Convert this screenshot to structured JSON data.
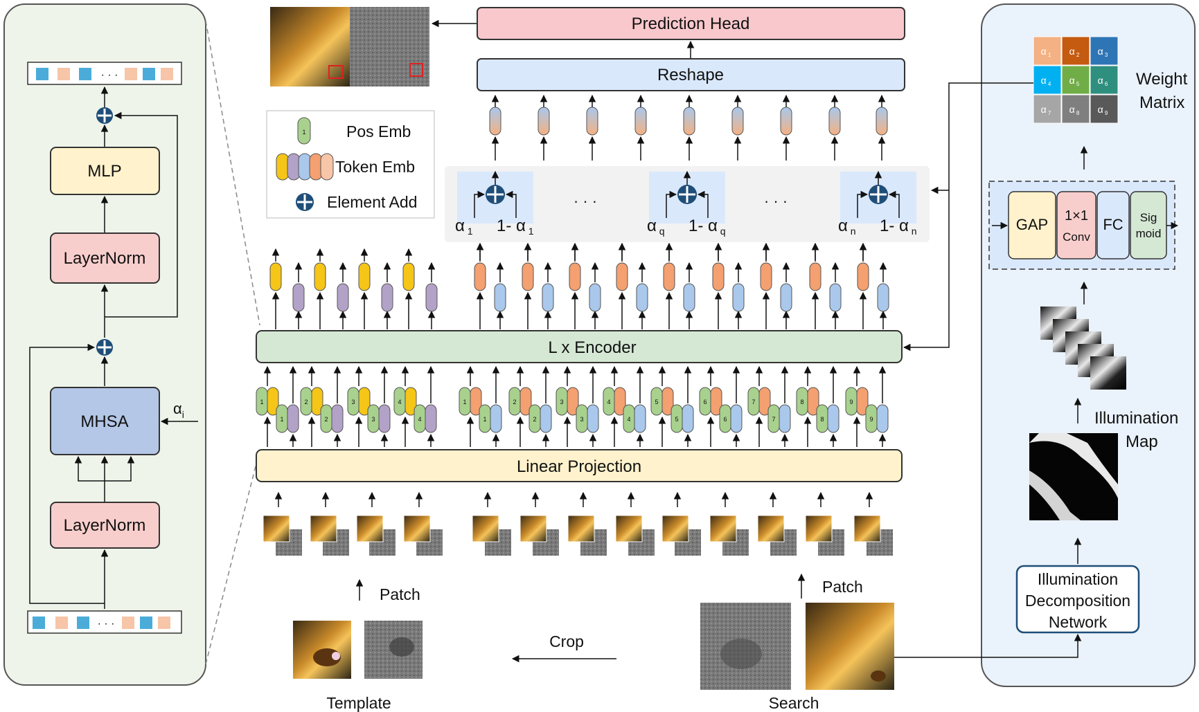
{
  "left_panel": {
    "mlp": "MLP",
    "layernorm_top": "LayerNorm",
    "mhsa": "MHSA",
    "layernorm_bottom": "LayerNorm",
    "alpha_input": "α",
    "alpha_sub": "i",
    "token_ellipsis": "· · ·"
  },
  "center": {
    "prediction_head": "Prediction Head",
    "reshape": "Reshape",
    "encoder": "L x Encoder",
    "linear_projection": "Linear Projection",
    "gate_dots": "·  ·  ·",
    "gate_labels": [
      {
        "alpha": "α",
        "sub": "1",
        "one_minus": "1- α",
        "sub2": "1"
      },
      {
        "alpha": "α",
        "sub": "q",
        "one_minus": "1- α",
        "sub2": "q"
      },
      {
        "alpha": "α",
        "sub": "n",
        "one_minus": "1- α",
        "sub2": "n"
      }
    ],
    "template_pos_ids": [
      "1",
      "2",
      "3",
      "4"
    ],
    "search_pos_ids": [
      "1",
      "2",
      "3",
      "4",
      "5",
      "6",
      "7",
      "8",
      "9"
    ],
    "patch_label_left": "Patch",
    "patch_label_right": "Patch",
    "crop_label": "Crop",
    "template_label": "Template",
    "search_label": "Search"
  },
  "legend": {
    "pos_emb": "Pos Emb",
    "pos_emb_id": "1",
    "token_emb": "Token Emb",
    "element_add": "Element Add"
  },
  "right_panel": {
    "weight_matrix_label_1": "Weight",
    "weight_matrix_label_2": "Matrix",
    "matrix_cells": [
      {
        "a": "α",
        "s": "1",
        "color": "#f4b183"
      },
      {
        "a": "α",
        "s": "2",
        "color": "#c55a11"
      },
      {
        "a": "α",
        "s": "3",
        "color": "#2e75b6"
      },
      {
        "a": "α",
        "s": "4",
        "color": "#00b0f0"
      },
      {
        "a": "α",
        "s": "5",
        "color": "#70ad47"
      },
      {
        "a": "α",
        "s": "6",
        "color": "#2f8f7f"
      },
      {
        "a": "α",
        "s": "7",
        "color": "#a6a6a6"
      },
      {
        "a": "α",
        "s": "8",
        "color": "#7f7f7f"
      },
      {
        "a": "α",
        "s": "9",
        "color": "#595959"
      }
    ],
    "gap": "GAP",
    "conv_1": "1×1",
    "conv_2": "Conv",
    "fc": "FC",
    "sigmoid_1": "Sig",
    "sigmoid_2": "moid",
    "illumination_map_1": "Illumination",
    "illumination_map_2": "Map",
    "idn_1": "Illumination",
    "idn_2": "Decomposition",
    "idn_3": "Network"
  },
  "colors": {
    "template_token": "#f5c518",
    "template_pos": "#b3a2c7",
    "search_token": "#f4a070",
    "search_pos": "#a9c8ec",
    "pos_emb": "#a9d18e",
    "prediction_head": "#f8c8cc",
    "reshape": "#dae8fc",
    "encoder": "#d5e8d4",
    "linear_projection": "#fff2cc",
    "mlp": "#fff2cc",
    "layernorm": "#f8cecc",
    "mhsa": "#b4c7e7",
    "add_icon": "#1f4e79"
  }
}
